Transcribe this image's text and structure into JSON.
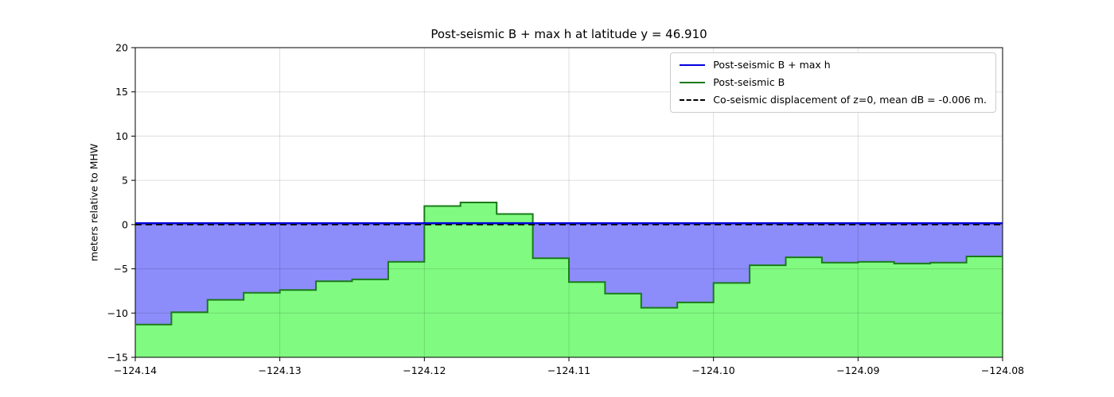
{
  "figure": {
    "title": "Post-seismic B + max h at latitude y = 46.910",
    "ylabel": "meters relative to MHW"
  },
  "chart_data": {
    "type": "area",
    "title": "Post-seismic B + max h at latitude y = 46.910",
    "xlabel": "",
    "ylabel": "meters relative to MHW",
    "xlim": [
      -124.14,
      -124.08
    ],
    "ylim": [
      -15,
      20
    ],
    "xticks": [
      -124.14,
      -124.13,
      -124.12,
      -124.11,
      -124.1,
      -124.09,
      -124.08
    ],
    "xtick_labels": [
      "−124.14",
      "−124.13",
      "−124.12",
      "−124.11",
      "−124.10",
      "−124.09",
      "−124.08"
    ],
    "yticks": [
      -15,
      -10,
      -5,
      0,
      5,
      10,
      15,
      20
    ],
    "ytick_labels": [
      "−15",
      "−10",
      "−5",
      "0",
      "5",
      "10",
      "15",
      "20"
    ],
    "grid": true,
    "grid_color": "rgba(0,0,0,0.13)",
    "legend_position": "upper right",
    "series": [
      {
        "name": "Post-seismic B + max h",
        "type": "hline",
        "y": 0.15,
        "color": "#0000e0",
        "fill": "#8c8cfa",
        "linewidth": 2.5
      },
      {
        "name": "Post-seismic B",
        "type": "steps",
        "x_start": -124.14,
        "x_step": 0.0025,
        "values": [
          -11.3,
          -9.9,
          -8.5,
          -7.7,
          -7.4,
          -6.4,
          -6.2,
          -4.2,
          2.1,
          2.5,
          1.2,
          -3.8,
          -6.5,
          -7.8,
          -9.4,
          -8.8,
          -6.6,
          -4.6,
          -3.7,
          -4.3,
          -4.2,
          -4.4,
          -4.3,
          -3.6
        ],
        "color": "#1a7a1a",
        "fill": "#80fa80",
        "linewidth": 2
      },
      {
        "name": "Co-seismic displacement of z=0, mean dB = -0.006 m.",
        "type": "hline",
        "y": 0.0,
        "color": "#000000",
        "dash": [
          8,
          5
        ],
        "linewidth": 1.8
      }
    ]
  }
}
